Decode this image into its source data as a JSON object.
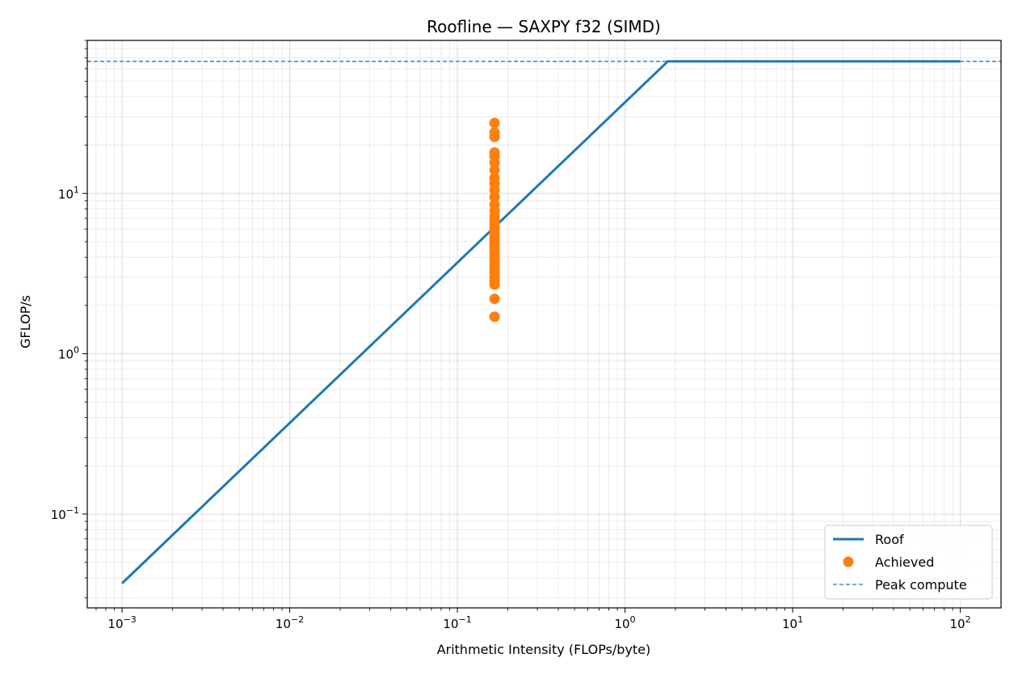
{
  "chart_data": {
    "type": "line",
    "title": "Roofline — SAXPY f32 (SIMD)",
    "xlabel": "Arithmetic Intensity (FLOPs/byte)",
    "ylabel": "GFLOP/s",
    "x_scale": "log",
    "y_scale": "log",
    "xlim": [
      0.00062,
      175
    ],
    "ylim": [
      0.026,
      90
    ],
    "x_ticks": [
      {
        "value": 0.001,
        "base": "10",
        "exp": "−3"
      },
      {
        "value": 0.01,
        "base": "10",
        "exp": "−2"
      },
      {
        "value": 0.1,
        "base": "10",
        "exp": "−1"
      },
      {
        "value": 1,
        "base": "10",
        "exp": "0"
      },
      {
        "value": 10,
        "base": "10",
        "exp": "1"
      },
      {
        "value": 100,
        "base": "10",
        "exp": "2"
      }
    ],
    "y_ticks": [
      {
        "value": 0.1,
        "base": "10",
        "exp": "−1"
      },
      {
        "value": 1,
        "base": "10",
        "exp": "0"
      },
      {
        "value": 10,
        "base": "10",
        "exp": "1"
      }
    ],
    "grid": true,
    "legend_position": "bottom-right",
    "series": [
      {
        "name": "Roof",
        "kind": "line",
        "color": "#1f77b4",
        "x": [
          0.001,
          1.8,
          100
        ],
        "y": [
          0.037,
          66.6,
          66.6
        ]
      },
      {
        "name": "Achieved",
        "kind": "scatter",
        "color": "#ff7f0e",
        "x": 0.1667,
        "y": [
          1.7,
          2.2,
          2.7,
          2.85,
          3.0,
          3.2,
          3.4,
          3.6,
          3.8,
          4.0,
          4.2,
          4.4,
          4.6,
          4.8,
          5.0,
          5.2,
          5.4,
          5.6,
          5.8,
          6.0,
          6.2,
          6.5,
          6.8,
          7.2,
          7.8,
          8.5,
          9.5,
          10.5,
          11.5,
          12.5,
          14.0,
          15.5,
          17.0,
          18.0,
          22.5,
          24.0,
          27.5
        ]
      },
      {
        "name": "Peak compute",
        "kind": "hline",
        "color": "#1f77b4",
        "y": 66.6
      }
    ]
  }
}
